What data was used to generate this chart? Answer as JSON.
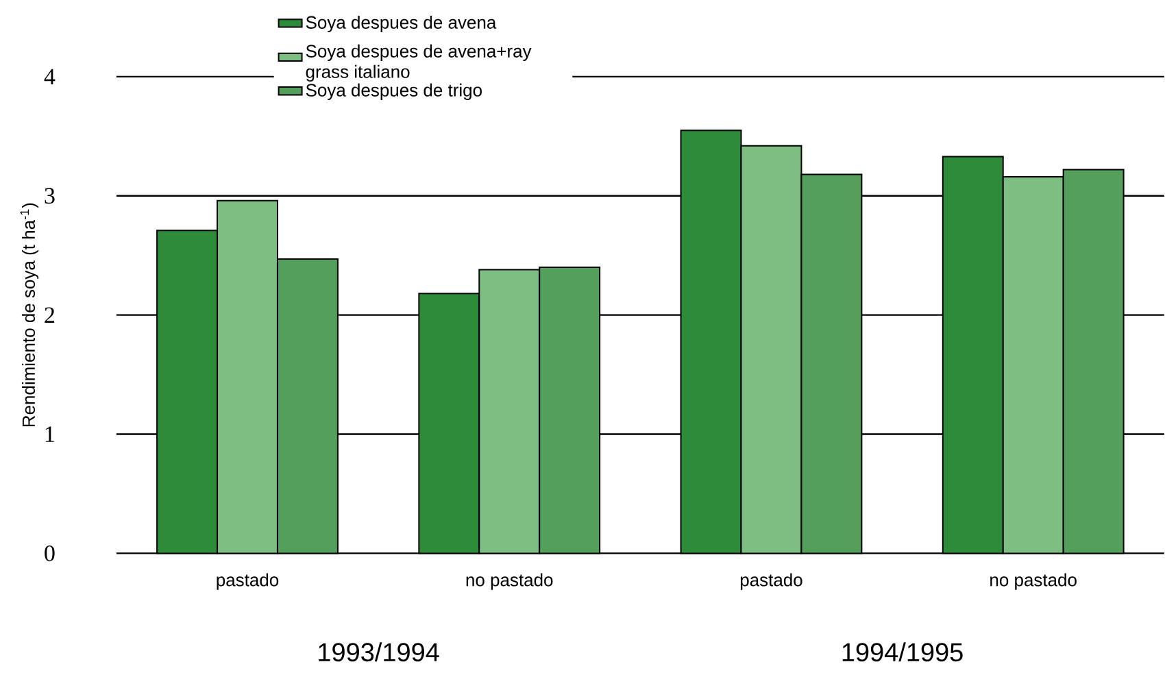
{
  "chart_data": {
    "type": "bar",
    "ylabel": "Rendimiento de soya  (t ha$^{-1}$)",
    "categories": [
      "pastado",
      "no pastado",
      "pastado",
      "no pastado"
    ],
    "series": [
      {
        "name": "Soya despues de avena",
        "color": "#2e8b3a",
        "values": [
          2.71,
          2.18,
          3.55,
          3.33
        ]
      },
      {
        "name": "Soya despues de avena+ray grass italiano",
        "color": "#7dbf82",
        "values": [
          2.96,
          2.38,
          3.42,
          3.16
        ]
      },
      {
        "name": "Soya despues de trigo",
        "color": "#559f5c",
        "values": [
          2.47,
          2.4,
          3.18,
          3.22
        ]
      }
    ],
    "ylim": [
      0,
      4
    ],
    "yticks": [
      0,
      1,
      2,
      3,
      4
    ],
    "grid": "y",
    "legend": "top",
    "annotations": [
      "1993/1994",
      "1994/1995"
    ]
  }
}
